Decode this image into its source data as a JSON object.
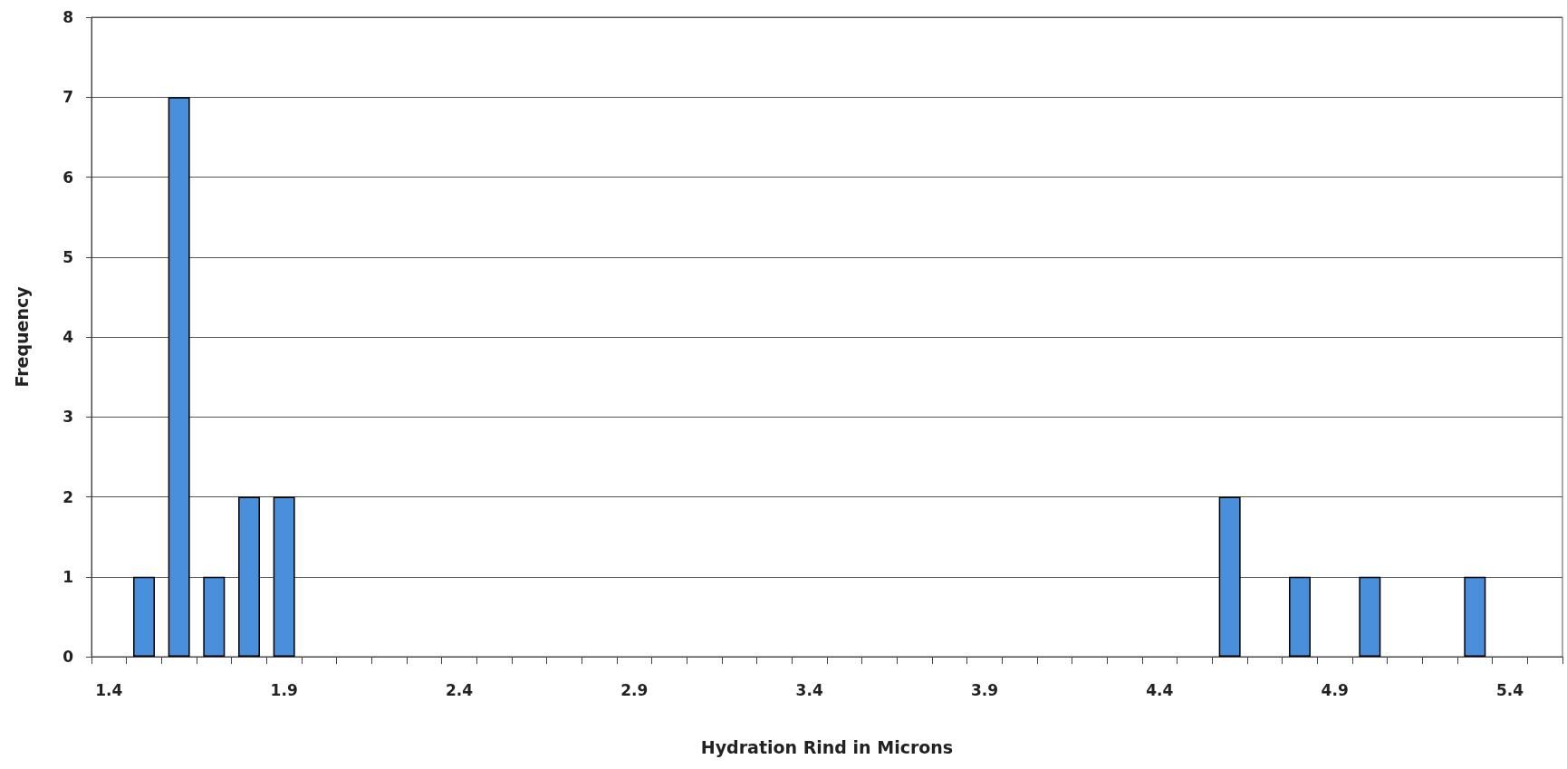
{
  "chart_data": {
    "type": "bar",
    "xlabel": "Hydration Rind in Microns",
    "ylabel": "Frequency",
    "categories": [
      "1.4",
      null,
      null,
      null,
      null,
      "1.9",
      null,
      null,
      null,
      null,
      "2.4",
      null,
      null,
      null,
      null,
      "2.9",
      null,
      null,
      null,
      null,
      "3.4",
      null,
      null,
      null,
      null,
      "3.9",
      null,
      null,
      null,
      null,
      "4.4",
      null,
      null,
      null,
      null,
      "4.9",
      null,
      null,
      null,
      null,
      "5.4",
      null
    ],
    "values": [
      0,
      1,
      7,
      1,
      2,
      2,
      0,
      0,
      0,
      0,
      0,
      0,
      0,
      0,
      0,
      0,
      0,
      0,
      0,
      0,
      0,
      0,
      0,
      0,
      0,
      0,
      0,
      0,
      0,
      0,
      0,
      0,
      2,
      0,
      1,
      0,
      1,
      0,
      0,
      1,
      0,
      0
    ],
    "color": "#4a8fdc",
    "ylim": [
      0,
      8
    ],
    "yticks": [
      0,
      1,
      2,
      3,
      4,
      5,
      6,
      7,
      8
    ],
    "grid": "y"
  }
}
